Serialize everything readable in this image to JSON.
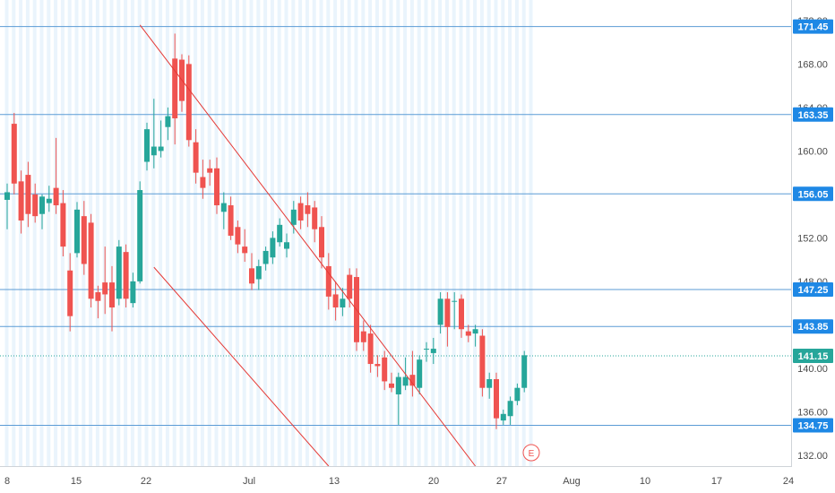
{
  "chart_data": {
    "type": "candlestick",
    "title": "",
    "xlabel": "",
    "ylabel": "",
    "ylim": [
      131.0,
      172.9
    ],
    "grid": "vertical stripes",
    "x_ticks": [
      "8",
      "15",
      "22",
      "Jul",
      "13",
      "20",
      "27",
      "Aug",
      "10",
      "17",
      "24"
    ],
    "y_ticks": [
      "132.00",
      "136.00",
      "140.00",
      "144.00",
      "148.00",
      "152.00",
      "156.00",
      "160.00",
      "164.00",
      "168.00",
      "172.00"
    ],
    "horizontal_levels": [
      "171.45",
      "163.35",
      "156.05",
      "147.25",
      "143.85",
      "134.75"
    ],
    "last_price": "141.15",
    "event_marker": "E",
    "colors": {
      "up": "#26a69a",
      "down": "#ef5350",
      "level_line": "#5b9bd5",
      "trend_line": "#e53935",
      "price_tag": "#1e88e5",
      "last_price_tag": "#26a69a",
      "stripes": "#eaf4fc"
    },
    "trend_lines": [
      {
        "from": [
          "Jun 24",
          171.6
        ],
        "to": [
          "Aug 11",
          131.0
        ]
      },
      {
        "from": [
          "Jun 26",
          149.3
        ],
        "to": [
          "Jul 21",
          131.0
        ]
      }
    ],
    "candles": [
      {
        "date": "Jun 5",
        "open": 155.5,
        "high": 157.0,
        "low": 152.8,
        "close": 156.2
      },
      {
        "date": "Jun 6",
        "open": 162.5,
        "high": 163.5,
        "low": 156.0,
        "close": 157.0
      },
      {
        "date": "Jun 7",
        "open": 157.2,
        "high": 158.2,
        "low": 152.4,
        "close": 153.6
      },
      {
        "date": "Jun 8",
        "open": 157.8,
        "high": 159.0,
        "low": 153.0,
        "close": 154.2
      },
      {
        "date": "Jun 9",
        "open": 156.0,
        "high": 157.0,
        "low": 153.4,
        "close": 154.0
      },
      {
        "date": "Jun 10",
        "open": 154.2,
        "high": 156.0,
        "low": 152.8,
        "close": 155.8
      },
      {
        "date": "Jun 11",
        "open": 155.2,
        "high": 156.8,
        "low": 154.4,
        "close": 155.6
      },
      {
        "date": "Jun 12",
        "open": 156.6,
        "high": 161.2,
        "low": 154.2,
        "close": 155.0
      },
      {
        "date": "Jun 13",
        "open": 155.2,
        "high": 156.4,
        "low": 150.3,
        "close": 151.2
      },
      {
        "date": "Jun 14",
        "open": 149.0,
        "high": 150.6,
        "low": 143.4,
        "close": 144.8
      },
      {
        "date": "Jun 15",
        "open": 150.6,
        "high": 155.3,
        "low": 150.2,
        "close": 154.6
      },
      {
        "date": "Jun 16",
        "open": 154.0,
        "high": 155.4,
        "low": 148.6,
        "close": 149.6
      },
      {
        "date": "Jun 17",
        "open": 153.4,
        "high": 154.2,
        "low": 145.6,
        "close": 146.4
      },
      {
        "date": "Jun 18",
        "open": 147.0,
        "high": 147.6,
        "low": 144.6,
        "close": 146.2
      },
      {
        "date": "Jun 19",
        "open": 147.9,
        "high": 151.2,
        "low": 145.0,
        "close": 146.8
      },
      {
        "date": "Jun 20",
        "open": 147.9,
        "high": 149.4,
        "low": 143.4,
        "close": 145.6
      },
      {
        "date": "Jun 21",
        "open": 146.4,
        "high": 151.8,
        "low": 145.8,
        "close": 151.2
      },
      {
        "date": "Jun 22",
        "open": 150.7,
        "high": 151.4,
        "low": 145.6,
        "close": 146.4
      },
      {
        "date": "Jun 23",
        "open": 146.0,
        "high": 148.8,
        "low": 145.6,
        "close": 148.0
      },
      {
        "date": "Jun 24",
        "open": 148.0,
        "high": 157.2,
        "low": 147.8,
        "close": 156.4
      },
      {
        "date": "Jun 25",
        "open": 159.0,
        "high": 162.6,
        "low": 158.2,
        "close": 162.0
      },
      {
        "date": "Jun 26",
        "open": 159.6,
        "high": 164.8,
        "low": 158.4,
        "close": 160.4
      },
      {
        "date": "Jun 27",
        "open": 160.0,
        "high": 162.8,
        "low": 159.4,
        "close": 160.4
      },
      {
        "date": "Jun 28",
        "open": 162.2,
        "high": 164.0,
        "low": 161.0,
        "close": 163.2
      },
      {
        "date": "Jun 29",
        "open": 168.5,
        "high": 170.8,
        "low": 160.6,
        "close": 163.0
      },
      {
        "date": "Jun 30",
        "open": 168.4,
        "high": 168.9,
        "low": 163.6,
        "close": 164.6
      },
      {
        "date": "Jul 1",
        "open": 168.0,
        "high": 168.8,
        "low": 160.4,
        "close": 161.0
      },
      {
        "date": "Jul 2",
        "open": 160.8,
        "high": 162.0,
        "low": 157.0,
        "close": 158.0
      },
      {
        "date": "Jul 3",
        "open": 157.6,
        "high": 159.2,
        "low": 155.6,
        "close": 156.6
      },
      {
        "date": "Jul 4",
        "open": 158.4,
        "high": 159.2,
        "low": 156.8,
        "close": 158.0
      },
      {
        "date": "Jul 5",
        "open": 158.4,
        "high": 159.4,
        "low": 154.2,
        "close": 155.0
      },
      {
        "date": "Jul 6",
        "open": 154.4,
        "high": 156.2,
        "low": 152.8,
        "close": 155.2
      },
      {
        "date": "Jul 7",
        "open": 155.0,
        "high": 155.8,
        "low": 151.8,
        "close": 152.2
      },
      {
        "date": "Jul 8",
        "open": 153.0,
        "high": 153.6,
        "low": 150.6,
        "close": 151.4
      },
      {
        "date": "Jul 9",
        "open": 151.2,
        "high": 152.8,
        "low": 149.8,
        "close": 150.6
      },
      {
        "date": "Jul 10",
        "open": 149.2,
        "high": 150.6,
        "low": 147.2,
        "close": 147.8
      },
      {
        "date": "Jul 11",
        "open": 148.2,
        "high": 150.0,
        "low": 147.2,
        "close": 149.4
      },
      {
        "date": "Jul 12",
        "open": 149.6,
        "high": 151.2,
        "low": 149.0,
        "close": 150.8
      },
      {
        "date": "Jul 13",
        "open": 150.2,
        "high": 152.6,
        "low": 149.6,
        "close": 152.0
      },
      {
        "date": "Jul 14",
        "open": 151.6,
        "high": 153.8,
        "low": 151.2,
        "close": 153.2
      },
      {
        "date": "Jul 15",
        "open": 151.0,
        "high": 152.4,
        "low": 150.2,
        "close": 151.6
      },
      {
        "date": "Jul 16",
        "open": 153.2,
        "high": 155.4,
        "low": 152.4,
        "close": 154.6
      },
      {
        "date": "Jul 17",
        "open": 155.2,
        "high": 155.8,
        "low": 152.8,
        "close": 153.6
      },
      {
        "date": "Jul 18",
        "open": 155.0,
        "high": 156.2,
        "low": 153.0,
        "close": 154.2
      },
      {
        "date": "Jul 19",
        "open": 154.8,
        "high": 155.4,
        "low": 151.6,
        "close": 152.8
      },
      {
        "date": "Jul 20",
        "open": 153.0,
        "high": 154.0,
        "low": 149.2,
        "close": 150.2
      },
      {
        "date": "Jul 21",
        "open": 149.4,
        "high": 150.6,
        "low": 145.4,
        "close": 146.6
      },
      {
        "date": "Jul 22",
        "open": 146.8,
        "high": 148.0,
        "low": 144.4,
        "close": 145.6
      },
      {
        "date": "Jul 23",
        "open": 145.6,
        "high": 147.4,
        "low": 144.8,
        "close": 146.4
      },
      {
        "date": "Jul 24",
        "open": 148.6,
        "high": 149.2,
        "low": 145.6,
        "close": 146.4
      },
      {
        "date": "Jul 25",
        "open": 148.4,
        "high": 149.2,
        "low": 141.6,
        "close": 142.4
      },
      {
        "date": "Jul 26",
        "open": 143.4,
        "high": 144.4,
        "low": 141.6,
        "close": 142.4
      },
      {
        "date": "Jul 27",
        "open": 143.2,
        "high": 144.0,
        "low": 139.6,
        "close": 140.4
      },
      {
        "date": "Jul 28",
        "open": 140.4,
        "high": 141.2,
        "low": 139.2,
        "close": 140.2
      },
      {
        "date": "Jul 29",
        "open": 141.0,
        "high": 141.6,
        "low": 138.0,
        "close": 138.8
      },
      {
        "date": "Jul 30",
        "open": 138.6,
        "high": 139.6,
        "low": 137.8,
        "close": 138.2
      },
      {
        "date": "Jul 31",
        "open": 137.6,
        "high": 139.6,
        "low": 134.8,
        "close": 139.2
      },
      {
        "date": "Aug 1",
        "open": 138.4,
        "high": 141.0,
        "low": 138.0,
        "close": 139.2
      },
      {
        "date": "Aug 2",
        "open": 139.4,
        "high": 141.6,
        "low": 137.4,
        "close": 138.4
      },
      {
        "date": "Aug 3",
        "open": 138.2,
        "high": 141.2,
        "low": 137.6,
        "close": 140.8
      },
      {
        "date": "Aug 4",
        "open": 141.8,
        "high": 142.4,
        "low": 140.6,
        "close": 141.8
      },
      {
        "date": "Aug 5",
        "open": 141.4,
        "high": 142.8,
        "low": 140.4,
        "close": 141.8
      },
      {
        "date": "Aug 6",
        "open": 144.0,
        "high": 147.0,
        "low": 143.2,
        "close": 146.4
      },
      {
        "date": "Aug 7",
        "open": 146.4,
        "high": 147.0,
        "low": 142.0,
        "close": 143.8
      },
      {
        "date": "Aug 8",
        "open": 146.2,
        "high": 147.0,
        "low": 143.6,
        "close": 146.2
      },
      {
        "date": "Aug 9",
        "open": 146.4,
        "high": 146.8,
        "low": 142.8,
        "close": 143.6
      },
      {
        "date": "Aug 10",
        "open": 143.4,
        "high": 144.0,
        "low": 142.4,
        "close": 143.0
      },
      {
        "date": "Aug 11",
        "open": 143.2,
        "high": 144.0,
        "low": 142.0,
        "close": 143.6
      },
      {
        "date": "Aug 12",
        "open": 143.0,
        "high": 143.6,
        "low": 137.4,
        "close": 138.2
      },
      {
        "date": "Aug 13",
        "open": 138.2,
        "high": 139.6,
        "low": 137.2,
        "close": 139.0
      },
      {
        "date": "Aug 14",
        "open": 139.0,
        "high": 139.6,
        "low": 134.4,
        "close": 135.4
      },
      {
        "date": "Aug 15",
        "open": 135.2,
        "high": 136.2,
        "low": 134.8,
        "close": 135.8
      },
      {
        "date": "Aug 16",
        "open": 135.6,
        "high": 137.4,
        "low": 134.8,
        "close": 137.0
      },
      {
        "date": "Aug 17",
        "open": 137.0,
        "high": 138.6,
        "low": 136.6,
        "close": 138.2
      },
      {
        "date": "Aug 18",
        "open": 138.2,
        "high": 141.6,
        "low": 137.8,
        "close": 141.2
      }
    ]
  }
}
